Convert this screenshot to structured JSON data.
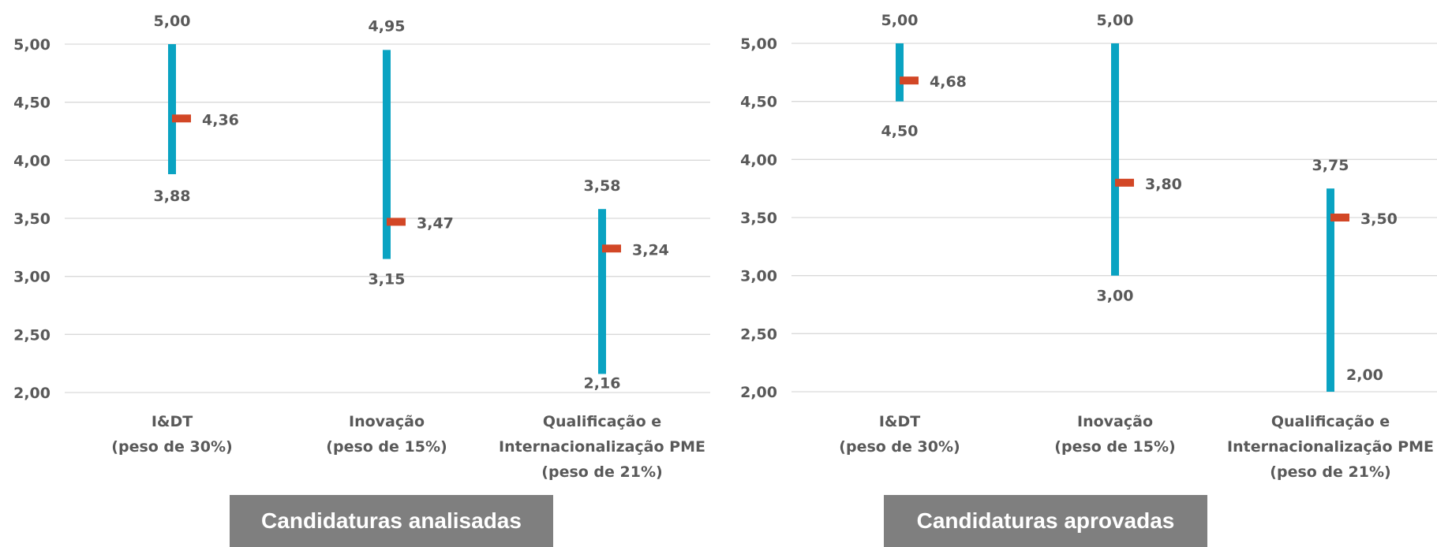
{
  "chart_data": [
    {
      "type": "range",
      "categories": [
        [
          "I&DT",
          "(peso de 30%)"
        ],
        [
          "Inovação",
          "(peso de 15%)"
        ],
        [
          "Qualificação e",
          "Internacionalização PME",
          "(peso de 21%)"
        ]
      ],
      "series": [
        {
          "values_min": [
            3.88,
            3.15,
            2.16
          ],
          "values_max": [
            5.0,
            4.95,
            3.58
          ],
          "values_mean": [
            4.36,
            3.47,
            3.24
          ]
        }
      ],
      "labels": {
        "min": [
          "3,88",
          "3,15",
          "2,16"
        ],
        "max": [
          "5,00",
          "4,95",
          "3,58"
        ],
        "mean": [
          "4,36",
          "3,47",
          "3,24"
        ]
      },
      "y_ticks": [
        "2,00",
        "2,50",
        "3,00",
        "3,50",
        "4,00",
        "4,50",
        "5,00"
      ],
      "ylim": [
        2.0,
        5.0
      ],
      "grid": true,
      "caption": "Candidaturas analisadas",
      "colors": {
        "range": "#0aa3c2",
        "mean": "#d24726"
      }
    },
    {
      "type": "range",
      "categories": [
        [
          "I&DT",
          "(peso de 30%)"
        ],
        [
          "Inovação",
          "(peso de 15%)"
        ],
        [
          "Qualificação e",
          "Internacionalização PME",
          "(peso de 21%)"
        ]
      ],
      "series": [
        {
          "values_min": [
            4.5,
            3.0,
            2.0
          ],
          "values_max": [
            5.0,
            5.0,
            3.75
          ],
          "values_mean": [
            4.68,
            3.8,
            3.5
          ]
        }
      ],
      "labels": {
        "min": [
          "4,50",
          "3,00",
          "2,00"
        ],
        "max": [
          "5,00",
          "5,00",
          "3,75"
        ],
        "mean": [
          "4,68",
          "3,80",
          "3,50"
        ]
      },
      "y_ticks": [
        "2,00",
        "2,50",
        "3,00",
        "3,50",
        "4,00",
        "4,50",
        "5,00"
      ],
      "ylim": [
        2.0,
        5.0
      ],
      "grid": true,
      "caption": "Candidaturas aprovadas",
      "colors": {
        "range": "#0aa3c2",
        "mean": "#d24726"
      }
    }
  ]
}
